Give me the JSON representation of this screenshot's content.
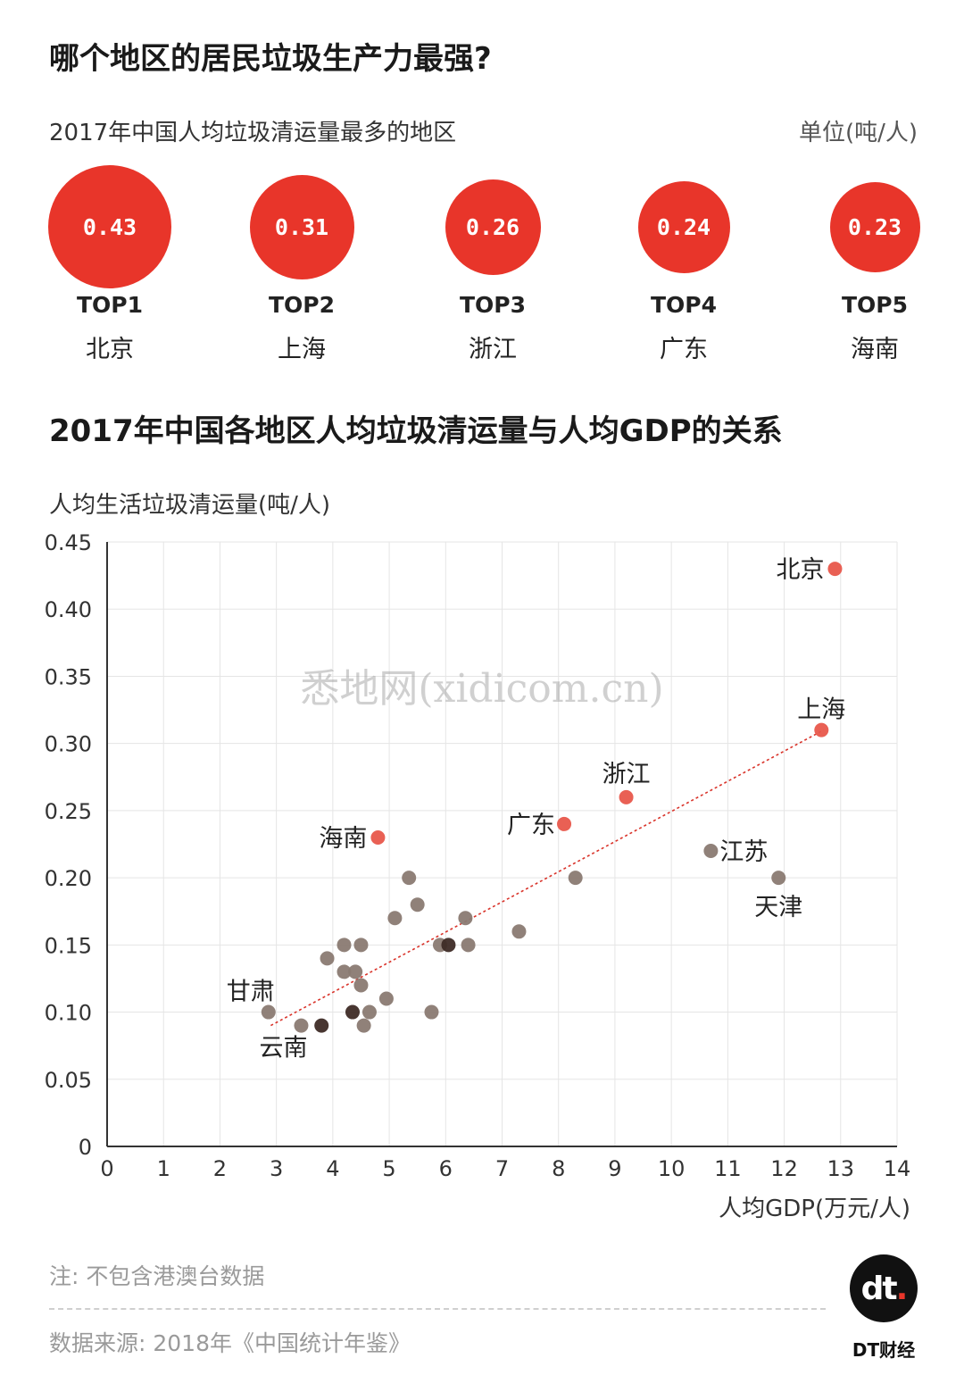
{
  "title": "哪个地区的居民垃圾生产力最强?",
  "top5": {
    "subtitle": "2017年中国人均垃圾清运量最多的地区",
    "unit": "单位(吨/人)",
    "items": [
      {
        "value": "0.43",
        "rank": "TOP1",
        "region": "北京"
      },
      {
        "value": "0.31",
        "rank": "TOP2",
        "region": "上海"
      },
      {
        "value": "0.26",
        "rank": "TOP3",
        "region": "浙江"
      },
      {
        "value": "0.24",
        "rank": "TOP4",
        "region": "广东"
      },
      {
        "value": "0.23",
        "rank": "TOP5",
        "region": "海南"
      }
    ],
    "circle_color": "#e8352a"
  },
  "chart_data": {
    "type": "scatter",
    "title": "2017年中国各地区人均垃圾清运量与人均GDP的关系",
    "ylabel": "人均生活垃圾清运量(吨/人)",
    "xlabel": "人均GDP(万元/人)",
    "xlim": [
      0,
      14
    ],
    "ylim": [
      0,
      0.45
    ],
    "xticks": [
      "0",
      "1",
      "2",
      "3",
      "4",
      "5",
      "6",
      "7",
      "8",
      "9",
      "10",
      "11",
      "12",
      "13",
      "14"
    ],
    "yticks": [
      "0",
      "0.05",
      "0.10",
      "0.15",
      "0.20",
      "0.25",
      "0.30",
      "0.35",
      "0.40",
      "0.45"
    ],
    "grid": true,
    "colors": {
      "highlight": "#e8574b",
      "normal": "#8a7a72",
      "dark": "#3e2b26",
      "trend": "#d9332a",
      "grid": "#e5e5e5",
      "axis": "#333333"
    },
    "trendline": {
      "x": [
        2.9,
        12.7
      ],
      "y": [
        0.09,
        0.31
      ]
    },
    "points": [
      {
        "x": 12.9,
        "y": 0.43,
        "label": "北京",
        "highlight": true
      },
      {
        "x": 12.66,
        "y": 0.31,
        "label": "上海",
        "highlight": true
      },
      {
        "x": 9.2,
        "y": 0.26,
        "label": "浙江",
        "highlight": true
      },
      {
        "x": 8.1,
        "y": 0.24,
        "label": "广东",
        "highlight": true
      },
      {
        "x": 4.8,
        "y": 0.23,
        "label": "海南",
        "highlight": true
      },
      {
        "x": 10.7,
        "y": 0.22,
        "label": "江苏"
      },
      {
        "x": 11.9,
        "y": 0.2,
        "label": "天津"
      },
      {
        "x": 2.86,
        "y": 0.1,
        "label": "甘肃"
      },
      {
        "x": 3.44,
        "y": 0.09,
        "label": "云南"
      },
      {
        "x": 3.8,
        "y": 0.09,
        "dark": true
      },
      {
        "x": 3.9,
        "y": 0.14
      },
      {
        "x": 4.2,
        "y": 0.15
      },
      {
        "x": 4.2,
        "y": 0.13
      },
      {
        "x": 4.4,
        "y": 0.13
      },
      {
        "x": 4.5,
        "y": 0.15
      },
      {
        "x": 4.5,
        "y": 0.12
      },
      {
        "x": 4.35,
        "y": 0.1,
        "dark": true
      },
      {
        "x": 4.55,
        "y": 0.09
      },
      {
        "x": 4.65,
        "y": 0.1
      },
      {
        "x": 4.95,
        "y": 0.11
      },
      {
        "x": 5.1,
        "y": 0.17
      },
      {
        "x": 5.35,
        "y": 0.2
      },
      {
        "x": 5.5,
        "y": 0.18
      },
      {
        "x": 5.75,
        "y": 0.1
      },
      {
        "x": 5.9,
        "y": 0.15
      },
      {
        "x": 6.05,
        "y": 0.15,
        "dark": true
      },
      {
        "x": 6.35,
        "y": 0.17
      },
      {
        "x": 6.4,
        "y": 0.15
      },
      {
        "x": 7.3,
        "y": 0.16
      },
      {
        "x": 8.3,
        "y": 0.2
      }
    ]
  },
  "note": "注: 不包含港澳台数据",
  "source": "数据来源: 2018年《中国统计年鉴》",
  "brand": {
    "logo_main": "dt",
    "logo_dot": ".",
    "name": "DT财经"
  },
  "watermark": "悉地网(xidicom.cn)"
}
